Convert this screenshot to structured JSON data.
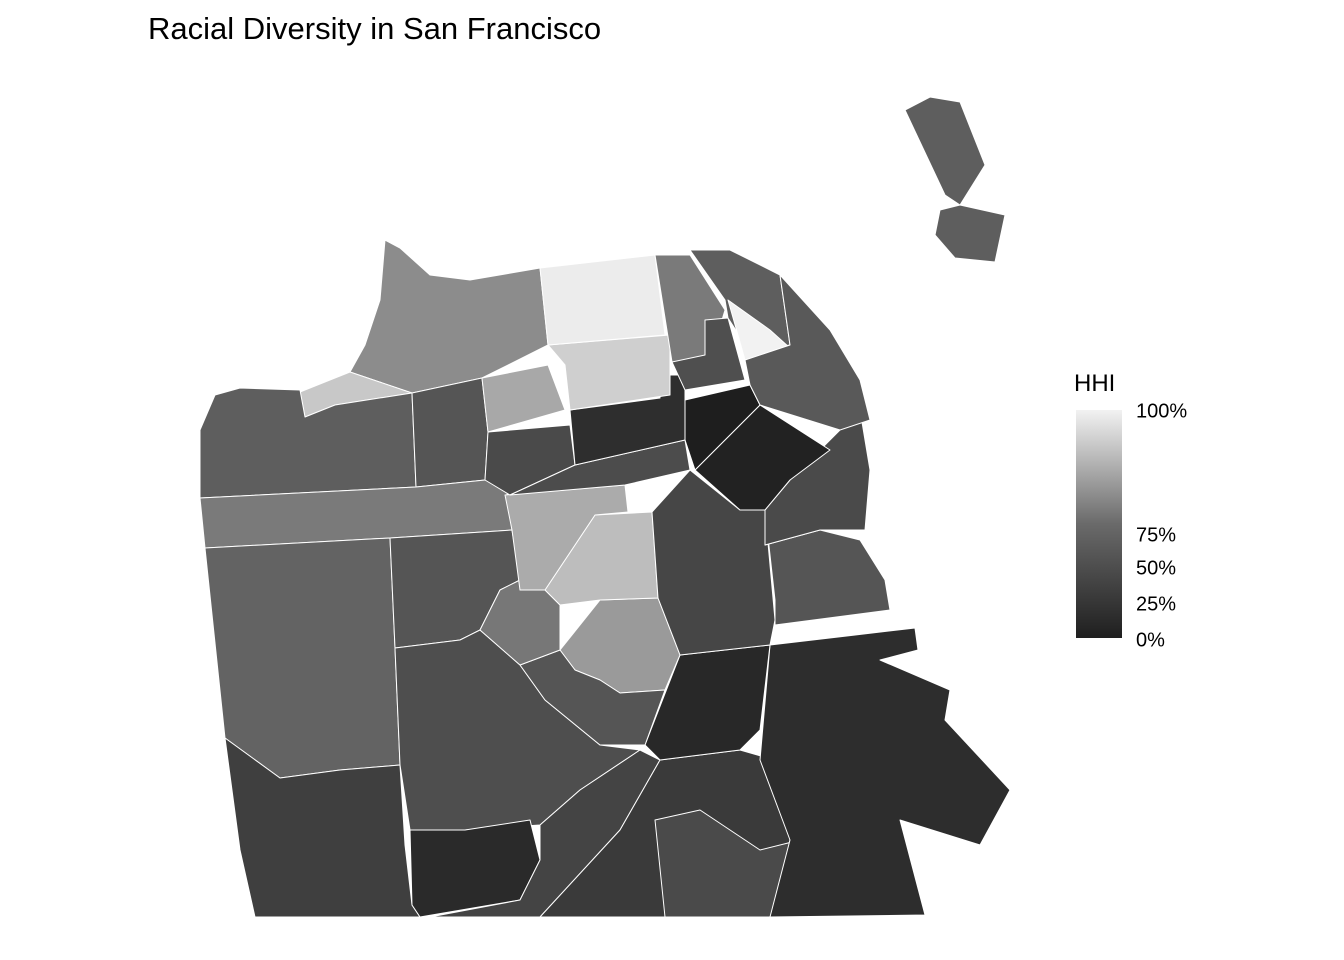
{
  "title": "Racial Diversity in San Francisco",
  "legend": {
    "title": "HHI",
    "labels": [
      "100%",
      "75%",
      "50%",
      "25%",
      "0%"
    ]
  }
}
